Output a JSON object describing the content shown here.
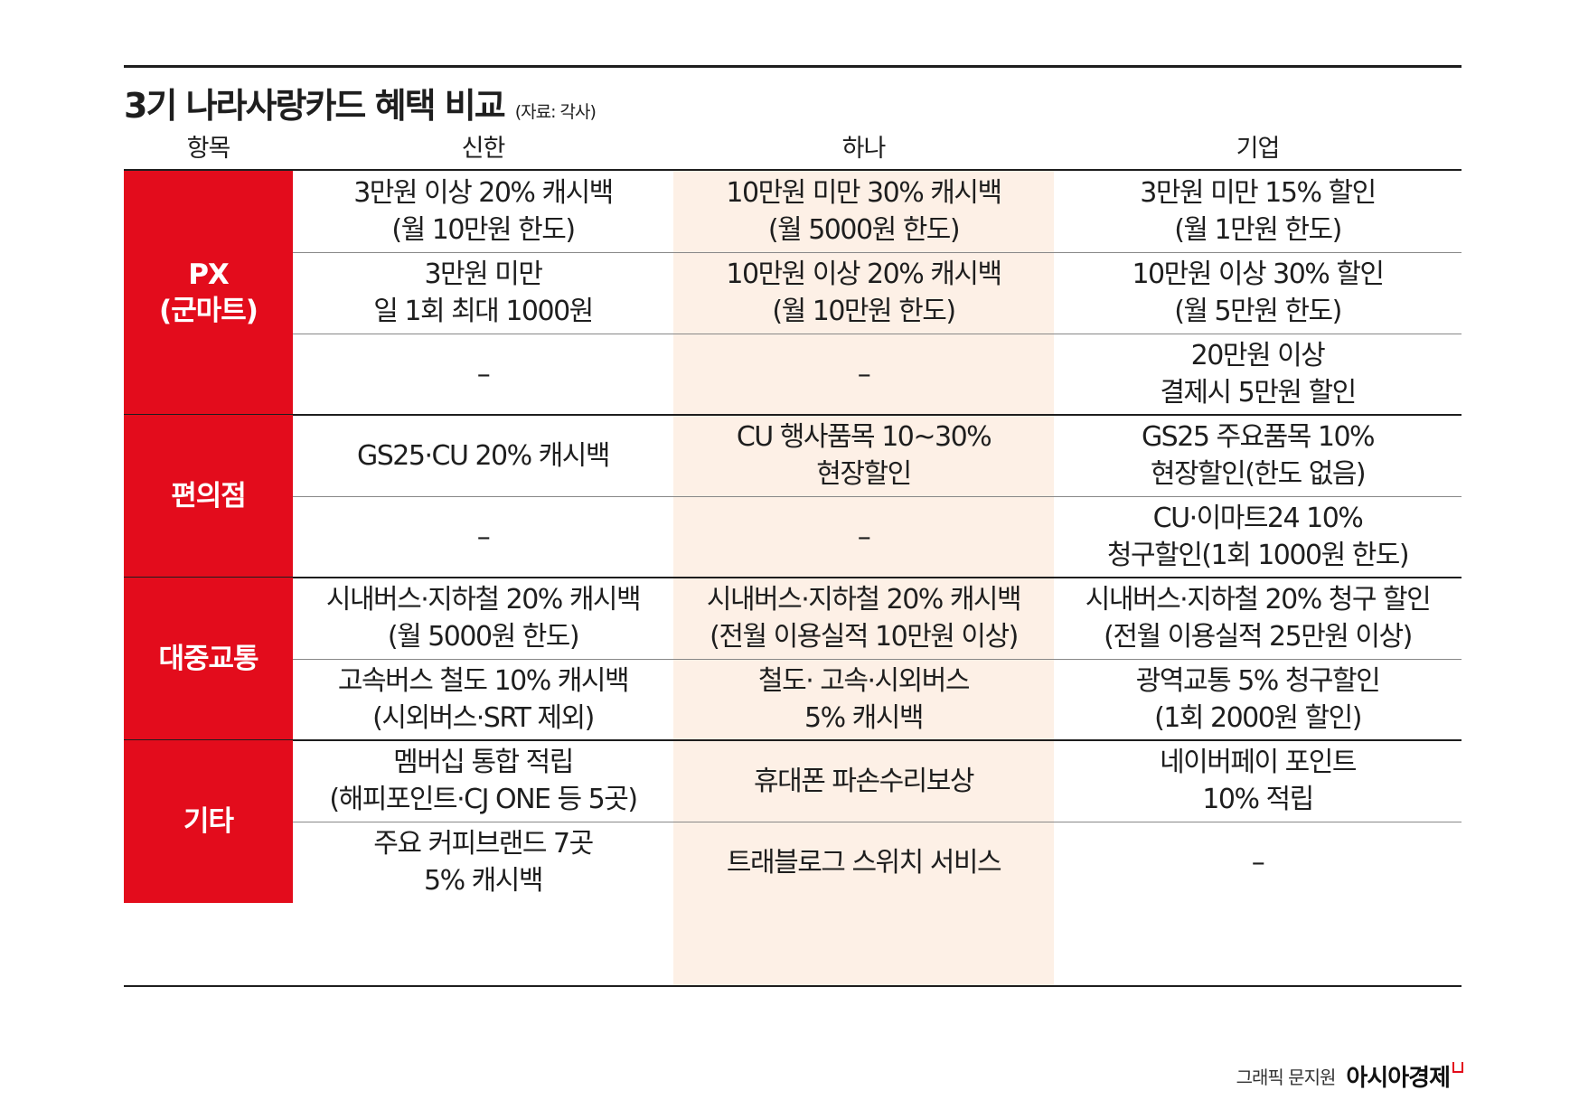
{
  "header": {
    "title": "3기 나라사랑카드 혜택 비교",
    "source": "(자료: 각사)"
  },
  "columns": [
    "항목",
    "신한",
    "하나",
    "기업"
  ],
  "categories": [
    {
      "label": "PX\n(군마트)",
      "rows": [
        [
          "3만원 이상 20% 캐시백\n(월 10만원 한도)",
          "10만원 미만 30% 캐시백\n(월 5000원 한도)",
          "3만원 미만 15% 할인\n(월 1만원 한도)"
        ],
        [
          "3만원 미만\n일 1회 최대 1000원",
          "10만원 이상 20% 캐시백\n(월 10만원 한도)",
          "10만원 이상 30% 할인\n(월 5만원 한도)"
        ],
        [
          "–",
          "–",
          "20만원 이상\n결제시 5만원 할인"
        ]
      ]
    },
    {
      "label": "편의점",
      "rows": [
        [
          "GS25·CU 20% 캐시백",
          "CU 행사품목 10~30%\n현장할인",
          "GS25 주요품목 10%\n현장할인(한도 없음)"
        ],
        [
          "–",
          "–",
          "CU·이마트24 10%\n청구할인(1회 1000원 한도)"
        ]
      ]
    },
    {
      "label": "대중교통",
      "rows": [
        [
          "시내버스·지하철 20% 캐시백\n(월 5000원 한도)",
          "시내버스·지하철 20% 캐시백\n(전월 이용실적 10만원 이상)",
          "시내버스·지하철 20% 청구 할인\n(전월 이용실적 25만원 이상)"
        ],
        [
          "고속버스 철도 10% 캐시백\n(시외버스·SRT 제외)",
          "철도· 고속·시외버스\n5% 캐시백",
          "광역교통 5% 청구할인\n(1회 2000원 할인)"
        ]
      ]
    },
    {
      "label": "기타",
      "rows": [
        [
          "멤버십 통합 적립\n(해피포인트·CJ ONE 등 5곳)",
          "휴대폰 파손수리보상",
          "네이버페이 포인트\n10% 적립"
        ],
        [
          "주요 커피브랜드 7곳\n5% 캐시백",
          "트래블로그 스위치 서비스",
          "–"
        ]
      ]
    }
  ],
  "footer": {
    "credit": "그래픽 문지원",
    "brand": "아시아경제"
  },
  "colors": {
    "category_red": "#e30c1c",
    "hana_column_bg": "#fdf0e6",
    "rule": "#1e1e1e",
    "row_line": "#888888"
  }
}
